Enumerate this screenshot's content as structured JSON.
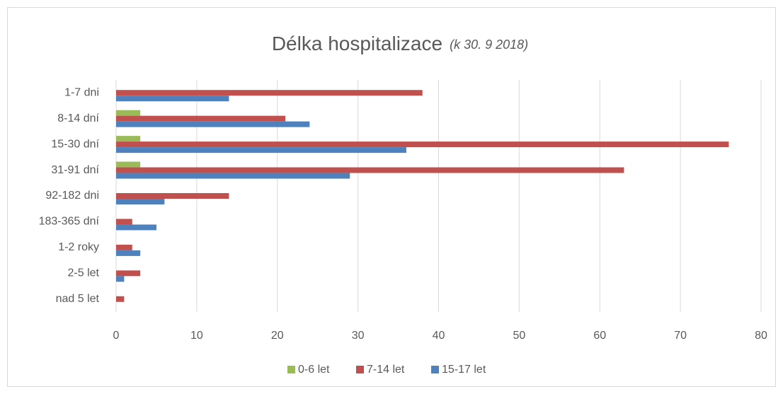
{
  "chart_data": {
    "type": "bar",
    "orientation": "horizontal",
    "title": "Délka hospitalizace",
    "subtitle": "(k 30. 9 2018)",
    "categories": [
      "1-7 dni",
      "8-14 dní",
      "15-30 dní",
      "31-91 dní",
      "92-182 dni",
      "183-365 dní",
      "1-2 roky",
      "2-5 let",
      "nad 5 let"
    ],
    "series": [
      {
        "name": "0-6 let",
        "color": "#9bbb59",
        "values": [
          0,
          3,
          3,
          3,
          0,
          0,
          0,
          0,
          0
        ]
      },
      {
        "name": "7-14 let",
        "color": "#c0504d",
        "values": [
          38,
          21,
          76,
          63,
          14,
          2,
          2,
          3,
          1
        ]
      },
      {
        "name": "15-17 let",
        "color": "#4f81bd",
        "values": [
          14,
          24,
          36,
          29,
          6,
          5,
          3,
          1,
          0
        ]
      }
    ],
    "xlim": [
      0,
      80
    ],
    "xticks": [
      0,
      10,
      20,
      30,
      40,
      50,
      60,
      70,
      80
    ],
    "grid": true,
    "legend": "bottom"
  }
}
